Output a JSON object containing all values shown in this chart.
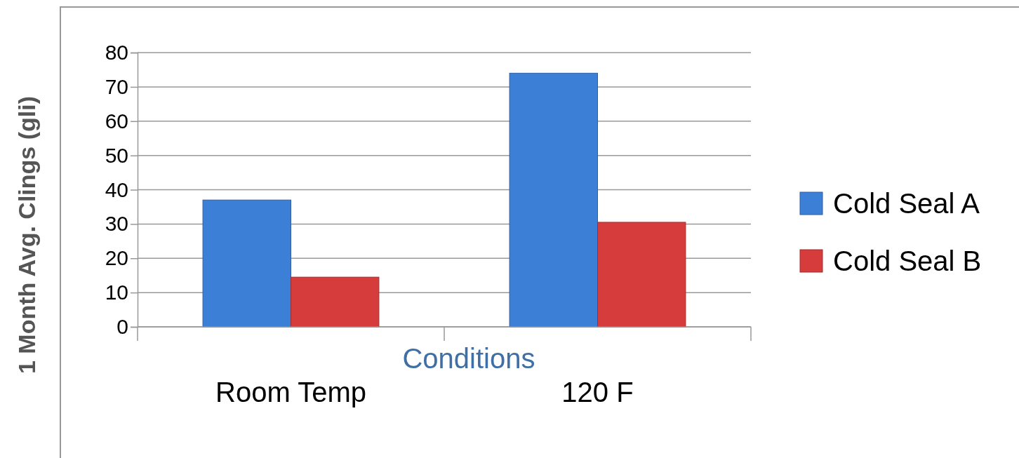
{
  "chart_data": {
    "type": "bar",
    "xlabel": "Conditions",
    "ylabel": "1 Month Avg. Clings (gli)",
    "categories": [
      "Room Temp",
      "120 F"
    ],
    "series": [
      {
        "name": "Cold Seal A",
        "color": "#3c7fd6",
        "values": [
          37,
          74
        ]
      },
      {
        "name": "Cold Seal B",
        "color": "#d63c3c",
        "values": [
          14.5,
          30.5
        ]
      }
    ],
    "ylim": [
      0,
      80
    ],
    "yticks": [
      0,
      10,
      20,
      30,
      40,
      50,
      60,
      70,
      80
    ],
    "grid": "y",
    "legend": "right"
  }
}
